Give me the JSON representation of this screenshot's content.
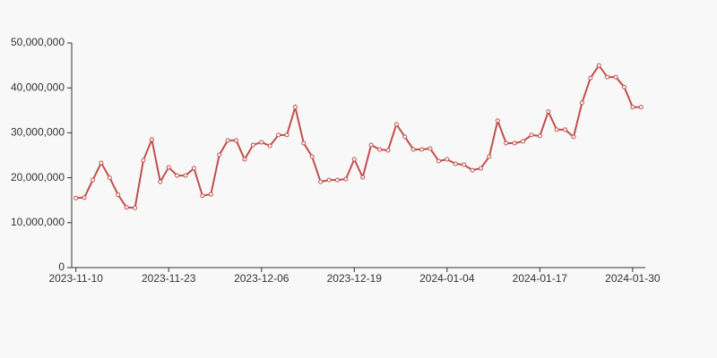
{
  "chart_data": {
    "type": "line",
    "categories": [
      "2023-11-10",
      null,
      null,
      null,
      null,
      null,
      null,
      null,
      null,
      null,
      null,
      "2023-11-23",
      null,
      null,
      null,
      null,
      null,
      null,
      null,
      null,
      null,
      null,
      "2023-12-06",
      null,
      null,
      null,
      null,
      null,
      null,
      null,
      null,
      null,
      null,
      "2023-12-19",
      null,
      null,
      null,
      null,
      null,
      null,
      null,
      null,
      null,
      null,
      "2024-01-04",
      null,
      null,
      null,
      null,
      null,
      null,
      null,
      null,
      null,
      null,
      "2024-01-17",
      null,
      null,
      null,
      null,
      null,
      null,
      null,
      null,
      null,
      null,
      "2024-01-30",
      null
    ],
    "values": [
      15500000,
      15600000,
      19500000,
      23300000,
      20000000,
      16200000,
      13400000,
      13300000,
      23900000,
      28500000,
      19100000,
      22300000,
      20500000,
      20500000,
      22100000,
      16000000,
      16300000,
      25100000,
      28300000,
      28300000,
      24100000,
      27300000,
      27900000,
      27100000,
      29500000,
      29500000,
      35700000,
      27700000,
      24700000,
      19100000,
      19500000,
      19500000,
      19700000,
      24100000,
      20100000,
      27300000,
      26300000,
      26100000,
      31900000,
      29100000,
      26300000,
      26300000,
      26500000,
      23700000,
      24100000,
      23100000,
      22900000,
      21700000,
      22100000,
      24700000,
      32700000,
      27700000,
      27700000,
      28100000,
      29500000,
      29300000,
      34700000,
      30700000,
      30700000,
      29100000,
      36700000,
      42200000,
      45000000,
      42400000,
      42400000,
      40200000,
      35700000,
      35700000
    ],
    "color": "#c0504d",
    "ylim": [
      0,
      50000000
    ],
    "yticks": [
      0,
      {
        "value": 10000000,
        "label": "10,000,000"
      },
      {
        "value": 20000000,
        "label": "20,000,000"
      },
      {
        "value": 30000000,
        "label": "30,000,000"
      },
      {
        "value": 40000000,
        "label": "40,000,000"
      },
      {
        "value": 50000000,
        "label": "50,000,000"
      }
    ],
    "grid": false
  }
}
